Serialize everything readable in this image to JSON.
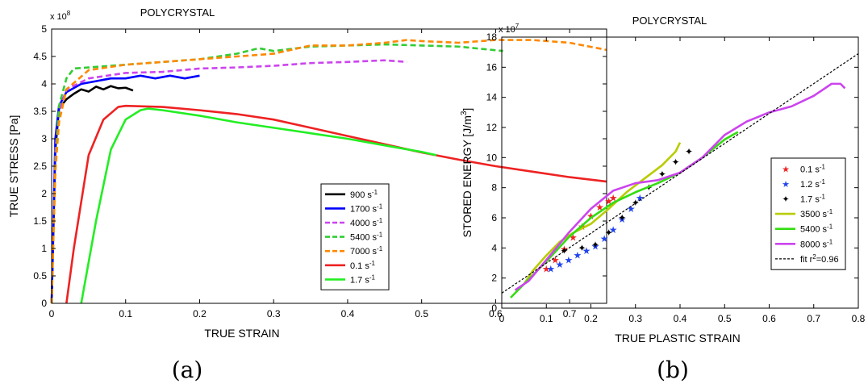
{
  "captions": [
    "(a)",
    "(b)"
  ],
  "chart_data": [
    {
      "type": "line",
      "title": "POLYCRYSTAL",
      "xlabel": "TRUE STRAIN",
      "ylabel": "TRUE STRESS [Pa]",
      "y_multiplier": "x 10^8",
      "y_multiplier_base": "x 10",
      "y_multiplier_exp": "8",
      "xlim": [
        0,
        0.75
      ],
      "ylim": [
        0,
        5
      ],
      "xticks": [
        0,
        0.1,
        0.2,
        0.3,
        0.4,
        0.5,
        0.6,
        0.7
      ],
      "yticks": [
        0,
        0.5,
        1,
        1.5,
        2,
        2.5,
        3,
        3.5,
        4,
        4.5,
        5
      ],
      "legend_position": "lower-right",
      "series": [
        {
          "label": "900 s",
          "exp": "-1",
          "color": "#000000",
          "dash": "solid",
          "x": [
            0,
            0.005,
            0.01,
            0.02,
            0.03,
            0.04,
            0.05,
            0.06,
            0.07,
            0.08,
            0.09,
            0.1,
            0.11
          ],
          "y": [
            0,
            2.8,
            3.55,
            3.72,
            3.82,
            3.9,
            3.86,
            3.95,
            3.9,
            3.96,
            3.92,
            3.93,
            3.88
          ]
        },
        {
          "label": "1700 s",
          "exp": "-1",
          "color": "#0000ff",
          "dash": "solid",
          "x": [
            0,
            0.005,
            0.01,
            0.02,
            0.04,
            0.06,
            0.08,
            0.1,
            0.12,
            0.14,
            0.16,
            0.18,
            0.2
          ],
          "y": [
            0,
            3.0,
            3.6,
            3.85,
            4.0,
            4.05,
            4.1,
            4.1,
            4.15,
            4.1,
            4.15,
            4.1,
            4.15
          ]
        },
        {
          "label": "4000 s",
          "exp": "-1",
          "color": "#cc44ee",
          "dash": "dashed",
          "x": [
            0,
            0.005,
            0.01,
            0.02,
            0.05,
            0.1,
            0.15,
            0.2,
            0.25,
            0.3,
            0.35,
            0.4,
            0.45,
            0.48
          ],
          "y": [
            0,
            2.8,
            3.5,
            3.9,
            4.1,
            4.2,
            4.22,
            4.28,
            4.3,
            4.33,
            4.38,
            4.4,
            4.43,
            4.4
          ]
        },
        {
          "label": "5400 s",
          "exp": "-1",
          "color": "#33cc33",
          "dash": "dashed",
          "x": [
            0,
            0.005,
            0.01,
            0.02,
            0.03,
            0.05,
            0.1,
            0.15,
            0.2,
            0.25,
            0.28,
            0.3,
            0.35,
            0.4,
            0.45,
            0.5,
            0.55,
            0.61
          ],
          "y": [
            0,
            2.5,
            3.6,
            4.1,
            4.28,
            4.3,
            4.35,
            4.4,
            4.45,
            4.55,
            4.65,
            4.6,
            4.68,
            4.7,
            4.72,
            4.7,
            4.68,
            4.6
          ]
        },
        {
          "label": "7000 s",
          "exp": "-1",
          "color": "#ff8800",
          "dash": "dashed",
          "x": [
            0,
            0.005,
            0.01,
            0.02,
            0.05,
            0.1,
            0.15,
            0.2,
            0.25,
            0.3,
            0.35,
            0.4,
            0.45,
            0.48,
            0.5,
            0.55,
            0.6,
            0.65,
            0.7,
            0.75
          ],
          "y": [
            0,
            2.4,
            3.3,
            3.9,
            4.25,
            4.35,
            4.4,
            4.45,
            4.5,
            4.55,
            4.7,
            4.7,
            4.75,
            4.8,
            4.78,
            4.75,
            4.8,
            4.8,
            4.75,
            4.62
          ]
        },
        {
          "label": "0.1 s",
          "exp": "-1",
          "color": "#ee2222",
          "dash": "solid",
          "x": [
            0.02,
            0.03,
            0.05,
            0.07,
            0.09,
            0.1,
            0.15,
            0.2,
            0.25,
            0.3,
            0.35,
            0.4,
            0.45,
            0.5,
            0.55,
            0.6,
            0.65,
            0.7,
            0.75
          ],
          "y": [
            0,
            1.0,
            2.7,
            3.35,
            3.58,
            3.6,
            3.58,
            3.52,
            3.45,
            3.35,
            3.2,
            3.05,
            2.9,
            2.75,
            2.62,
            2.5,
            2.4,
            2.3,
            2.22
          ]
        },
        {
          "label": "1.7 s",
          "exp": "-1",
          "color": "#22ee22",
          "dash": "solid",
          "x": [
            0.04,
            0.06,
            0.08,
            0.1,
            0.12,
            0.13,
            0.15,
            0.2,
            0.25,
            0.3,
            0.35,
            0.4,
            0.45,
            0.5,
            0.52
          ],
          "y": [
            0,
            1.5,
            2.8,
            3.35,
            3.52,
            3.55,
            3.52,
            3.42,
            3.3,
            3.2,
            3.1,
            3.0,
            2.88,
            2.76,
            2.7
          ]
        }
      ]
    },
    {
      "type": "line",
      "title": "POLYCRYSTAL",
      "xlabel": "TRUE PLASTIC STRAIN",
      "ylabel": "STORED ENERGY [J/m3]",
      "ylabel_text": "STORED ENERGY [J/m",
      "ylabel_sup": "3",
      "ylabel_close": "]",
      "y_multiplier": "x 10^7",
      "y_multiplier_base": "x 10",
      "y_multiplier_exp": "7",
      "xlim": [
        0,
        0.8
      ],
      "ylim": [
        0,
        18
      ],
      "xticks": [
        0,
        0.1,
        0.2,
        0.3,
        0.4,
        0.5,
        0.6,
        0.7,
        0.8
      ],
      "yticks": [
        0,
        2,
        4,
        6,
        8,
        10,
        12,
        14,
        16,
        18
      ],
      "legend_position": "right",
      "series": [
        {
          "label": "0.1 s",
          "exp": "-1",
          "color": "#ee2222",
          "style": "markers",
          "marker": "★",
          "x": [
            0.1,
            0.12,
            0.14,
            0.16,
            0.18,
            0.2,
            0.22,
            0.24,
            0.25
          ],
          "y": [
            2.6,
            3.2,
            3.9,
            4.7,
            5.4,
            6.1,
            6.7,
            7.1,
            7.3
          ]
        },
        {
          "label": "1.2 s",
          "exp": "-1",
          "color": "#2244ee",
          "style": "markers",
          "marker": "★",
          "x": [
            0.11,
            0.13,
            0.15,
            0.17,
            0.19,
            0.21,
            0.23,
            0.25,
            0.27,
            0.29,
            0.31
          ],
          "y": [
            2.6,
            2.9,
            3.2,
            3.5,
            3.8,
            4.1,
            4.6,
            5.2,
            5.9,
            6.6,
            7.3
          ]
        },
        {
          "label": "1.7 s",
          "exp": "-1",
          "color": "#000000",
          "style": "markers",
          "marker": "✦",
          "x": [
            0.14,
            0.18,
            0.21,
            0.24,
            0.27,
            0.3,
            0.33,
            0.36,
            0.39,
            0.42
          ],
          "y": [
            3.8,
            4.0,
            4.2,
            5.0,
            6.0,
            7.0,
            8.0,
            8.9,
            9.7,
            10.4
          ]
        },
        {
          "label": "3500 s",
          "exp": "-1",
          "color": "#b8cc00",
          "style": "line",
          "x": [
            0.05,
            0.07,
            0.1,
            0.13,
            0.16,
            0.2,
            0.24,
            0.28,
            0.32,
            0.36,
            0.39,
            0.4
          ],
          "y": [
            1.6,
            2.5,
            3.5,
            4.4,
            5.0,
            5.6,
            6.6,
            7.7,
            8.6,
            9.5,
            10.4,
            11.0
          ]
        },
        {
          "label": "5400 s",
          "exp": "-1",
          "color": "#33dd11",
          "style": "line",
          "x": [
            0.02,
            0.05,
            0.1,
            0.15,
            0.2,
            0.25,
            0.3,
            0.35,
            0.4,
            0.45,
            0.5,
            0.53
          ],
          "y": [
            0.7,
            1.6,
            3.1,
            4.7,
            6.0,
            7.0,
            7.7,
            8.3,
            9.0,
            10.0,
            11.2,
            11.7
          ]
        },
        {
          "label": "8000 s",
          "exp": "-1",
          "color": "#cc44ee",
          "style": "line",
          "x": [
            0.03,
            0.06,
            0.1,
            0.15,
            0.2,
            0.25,
            0.3,
            0.35,
            0.4,
            0.45,
            0.5,
            0.55,
            0.6,
            0.65,
            0.7,
            0.74,
            0.76,
            0.77
          ],
          "y": [
            1.2,
            1.8,
            3.2,
            5.0,
            6.6,
            7.8,
            8.3,
            8.5,
            9.0,
            10.0,
            11.5,
            12.4,
            13.0,
            13.4,
            14.1,
            14.9,
            14.9,
            14.6
          ]
        },
        {
          "label": "fit r",
          "exp": "2",
          "label_suffix": "=0.96",
          "color": "#000000",
          "style": "dashed",
          "x": [
            0,
            0.8
          ],
          "y": [
            1.0,
            16.9
          ]
        }
      ]
    }
  ]
}
